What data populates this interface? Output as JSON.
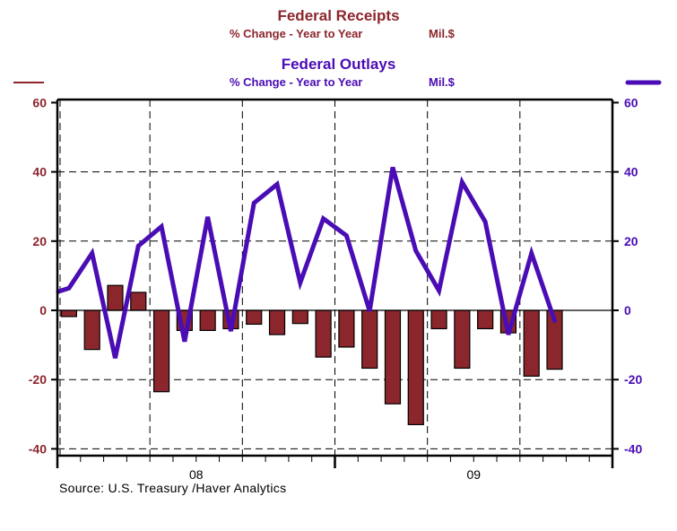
{
  "chart_data": {
    "type": "bar+line",
    "legend": [
      {
        "name": "Federal Receipts",
        "subtitle": "% Change - Year to Year",
        "units": "Mil.$",
        "color": "#8B262D",
        "mark": "bar",
        "axis": "left"
      },
      {
        "name": "Federal Outlays",
        "subtitle": "% Change - Year to Year",
        "units": "Mil.$",
        "color": "#4A0CB4",
        "mark": "line",
        "axis": "right"
      }
    ],
    "categories": [
      "Jan-08",
      "Feb-08",
      "Mar-08",
      "Apr-08",
      "May-08",
      "Jun-08",
      "Jul-08",
      "Aug-08",
      "Sep-08",
      "Oct-08",
      "Nov-08",
      "Dec-08",
      "Jan-09",
      "Feb-09",
      "Mar-09",
      "Apr-09",
      "May-09",
      "Jun-09",
      "Jul-09",
      "Aug-09",
      "Sep-09",
      "Oct-09"
    ],
    "series": [
      {
        "name": "Federal Receipts",
        "type": "bar",
        "values": [
          -1.8,
          -11.3,
          7.2,
          5.2,
          -23.5,
          -5.8,
          -5.8,
          -5.3,
          -4.0,
          -7.0,
          -3.8,
          -13.5,
          -10.6,
          -16.7,
          -27.0,
          -33.0,
          -5.3,
          -16.7,
          -5.3,
          -6.5,
          -19.0,
          -17.0
        ]
      },
      {
        "name": "Federal Outlays",
        "type": "line",
        "start_value": 5.4,
        "values": [
          6.4,
          16.5,
          -13.8,
          18.6,
          24.2,
          -9.0,
          27.0,
          -6.0,
          31.0,
          36.4,
          8.0,
          26.5,
          21.6,
          -0.2,
          41.3,
          17.2,
          5.7,
          37.0,
          25.6,
          -7.0,
          16.5,
          -3.0
        ]
      }
    ],
    "x_tick_labels": [
      "08",
      "09"
    ],
    "x_range_months": 24,
    "left_axis": {
      "ticks": [
        60,
        40,
        20,
        0,
        -20,
        -40
      ],
      "ylim": [
        -42,
        61
      ],
      "color": "#8B262D"
    },
    "right_axis": {
      "ticks": [
        60,
        40,
        20,
        0,
        -20,
        -40
      ],
      "ylim": [
        -42,
        61
      ],
      "color": "#4A0CB4"
    },
    "grid": true,
    "title": "Federal Receipts / Federal Outlays",
    "source": "Source:  U.S. Treasury /Haver Analytics"
  }
}
